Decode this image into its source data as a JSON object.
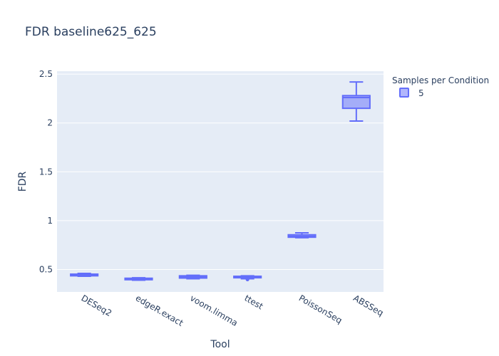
{
  "chart_data": {
    "type": "box",
    "title": "FDR baseline625_625",
    "xlabel": "Tool",
    "ylabel": "FDR",
    "categories": [
      "DESeq2",
      "edgeR.exact",
      "voom.limma",
      "ttest",
      "PoissonSeq",
      "ABSSeq"
    ],
    "ylim": [
      0.27,
      2.53
    ],
    "yticks": [
      0.5,
      1,
      1.5,
      2,
      2.5
    ],
    "ytick_labels": [
      "0.5",
      "1",
      "1.5",
      "2",
      "2.5"
    ],
    "grid": true,
    "legend_title": "Samples per Condition",
    "legend_placement": "top-right",
    "series": [
      {
        "name": "5",
        "color": "#636efa",
        "boxes": [
          {
            "category": "DESeq2",
            "min": 0.43,
            "q1": 0.435,
            "median": 0.443,
            "q3": 0.452,
            "max": 0.46
          },
          {
            "category": "edgeR.exact",
            "min": 0.39,
            "q1": 0.395,
            "median": 0.402,
            "q3": 0.41,
            "max": 0.415
          },
          {
            "category": "voom.limma",
            "min": 0.405,
            "q1": 0.412,
            "median": 0.425,
            "q3": 0.435,
            "max": 0.44
          },
          {
            "category": "ttest",
            "min": 0.405,
            "q1": 0.415,
            "median": 0.422,
            "q3": 0.43,
            "max": 0.435,
            "outliers": [
              0.397
            ]
          },
          {
            "category": "PoissonSeq",
            "min": 0.825,
            "q1": 0.83,
            "median": 0.84,
            "q3": 0.855,
            "max": 0.875
          },
          {
            "category": "ABSSeq",
            "min": 2.02,
            "q1": 2.15,
            "median": 2.26,
            "q3": 2.28,
            "max": 2.42
          }
        ]
      }
    ]
  }
}
